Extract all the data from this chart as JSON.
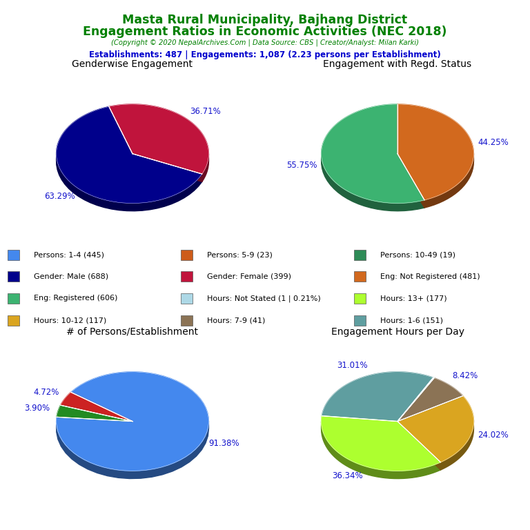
{
  "title_line1": "Masta Rural Municipality, Bajhang District",
  "title_line2": "Engagement Ratios in Economic Activities (NEC 2018)",
  "subtitle": "(Copyright © 2020 NepalArchives.Com | Data Source: CBS | Creator/Analyst: Milan Karki)",
  "stats_line": "Establishments: 487 | Engagements: 1,087 (2.23 persons per Establishment)",
  "title_color": "#008000",
  "subtitle_color": "#008000",
  "stats_color": "#0000CD",
  "label_color": "#1414CC",
  "pie1_title": "Genderwise Engagement",
  "pie1_values": [
    63.29,
    36.71
  ],
  "pie1_colors": [
    "#00008B",
    "#C0143C"
  ],
  "pie1_labels": [
    "63.29%",
    "36.71%"
  ],
  "pie1_startangle": 108,
  "pie2_title": "Engagement with Regd. Status",
  "pie2_values": [
    55.75,
    44.25
  ],
  "pie2_colors": [
    "#3CB371",
    "#D2691E"
  ],
  "pie2_labels": [
    "55.75%",
    "44.25%"
  ],
  "pie2_startangle": 90,
  "pie3_title": "# of Persons/Establishment",
  "pie3_values": [
    91.38,
    4.72,
    3.9
  ],
  "pie3_colors": [
    "#4488EE",
    "#CC2222",
    "#228B22"
  ],
  "pie3_labels": [
    "91.38%",
    "4.72%",
    "3.90%"
  ],
  "pie3_startangle": 175,
  "pie4_title": "Engagement Hours per Day",
  "pie4_values": [
    31.01,
    36.34,
    24.02,
    8.42,
    0.21
  ],
  "pie4_colors": [
    "#5F9EA0",
    "#ADFF2F",
    "#DAA520",
    "#8B7355",
    "#ADD8E6"
  ],
  "pie4_labels": [
    "31.01%",
    "36.34%",
    "24.02%",
    "8.42%",
    ""
  ],
  "pie4_startangle": 62,
  "legend_items": [
    {
      "label": "Persons: 1-4 (445)",
      "color": "#4488EE"
    },
    {
      "label": "Persons: 5-9 (23)",
      "color": "#CD5C1A"
    },
    {
      "label": "Persons: 10-49 (19)",
      "color": "#2E8B57"
    },
    {
      "label": "Gender: Male (688)",
      "color": "#00008B"
    },
    {
      "label": "Gender: Female (399)",
      "color": "#C0143C"
    },
    {
      "label": "Eng: Not Registered (481)",
      "color": "#D2691E"
    },
    {
      "label": "Eng: Registered (606)",
      "color": "#3CB371"
    },
    {
      "label": "Hours: Not Stated (1 | 0.21%)",
      "color": "#ADD8E6"
    },
    {
      "label": "Hours: 13+ (177)",
      "color": "#ADFF2F"
    },
    {
      "label": "Hours: 10-12 (117)",
      "color": "#DAA520"
    },
    {
      "label": "Hours: 7-9 (41)",
      "color": "#8B7355"
    },
    {
      "label": "Hours: 1-6 (151)",
      "color": "#5F9EA0"
    }
  ]
}
